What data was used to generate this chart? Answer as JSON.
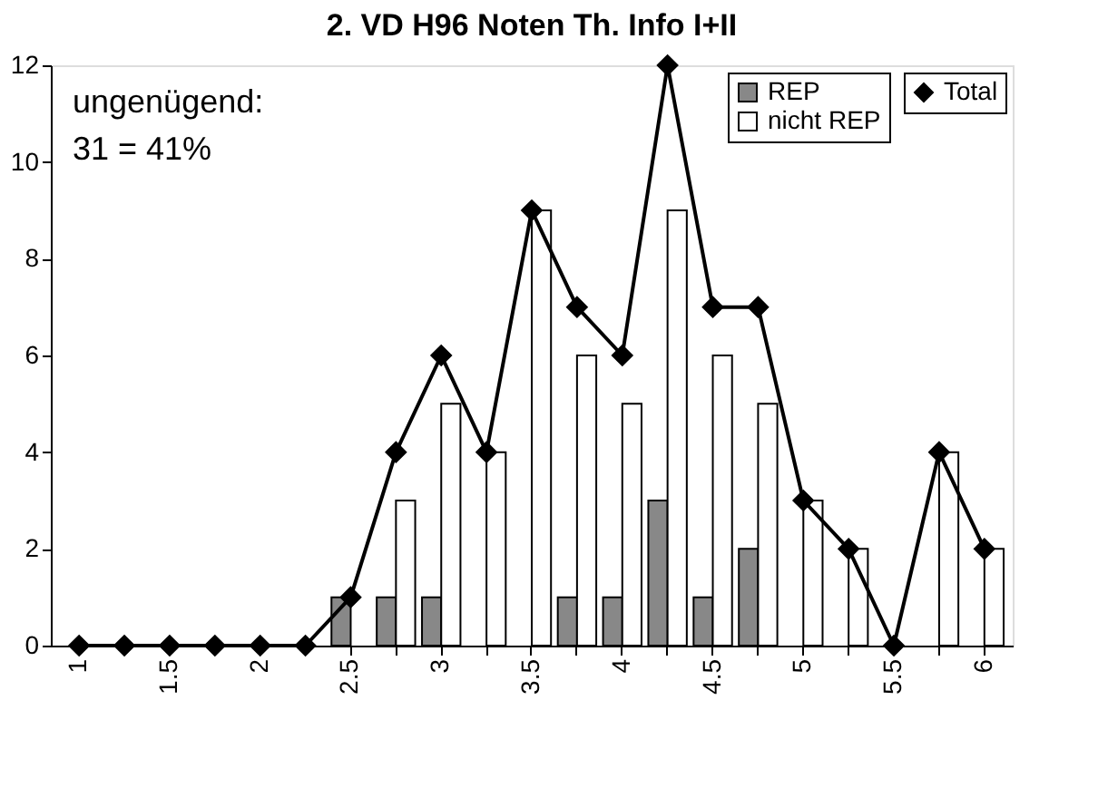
{
  "chart_data": {
    "type": "bar",
    "title": "2. VD H96 Noten Th. Info I+II",
    "categories": [
      "1",
      null,
      "1.5",
      null,
      "2",
      null,
      "2.5",
      null,
      "3",
      null,
      "3.5",
      null,
      "4",
      null,
      "4.5",
      null,
      "5",
      null,
      "5.5",
      null,
      "6"
    ],
    "series": [
      {
        "name": "REP",
        "color": "#888888",
        "values": [
          0,
          0,
          0,
          0,
          0,
          0,
          1,
          1,
          1,
          0,
          0,
          1,
          1,
          3,
          1,
          2,
          0,
          0,
          0,
          0,
          0
        ]
      },
      {
        "name": "nicht REP",
        "color": "#ffffff",
        "values": [
          0,
          0,
          0,
          0,
          0,
          0,
          0,
          3,
          5,
          4,
          9,
          6,
          5,
          9,
          6,
          5,
          3,
          2,
          0,
          4,
          2
        ]
      },
      {
        "name": "Total",
        "type": "line",
        "color": "#000000",
        "marker": "diamond",
        "values": [
          0,
          0,
          0,
          0,
          0,
          0,
          1,
          4,
          6,
          4,
          9,
          7,
          6,
          12,
          7,
          7,
          3,
          2,
          0,
          4,
          2
        ]
      }
    ],
    "ylim": [
      0,
      12
    ],
    "yticks": [
      0,
      2,
      4,
      6,
      8,
      10,
      12
    ],
    "grid": false,
    "legend": "top right",
    "annotations": [
      "ungenügend:\n31 = 41%"
    ]
  }
}
